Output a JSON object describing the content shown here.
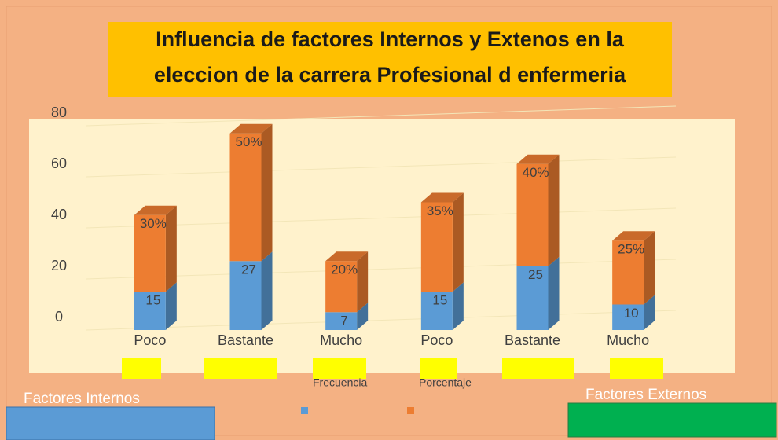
{
  "chart_data": {
    "type": "bar3d_stacked",
    "title": [
      "Influencia de factores Internos y Extenos en la",
      "eleccion de la carrera Profesional d enfermeria"
    ],
    "categories": [
      "Poco",
      "Bastante",
      "Mucho",
      "Poco",
      "Bastante",
      "Mucho"
    ],
    "group_labels": [
      "Factores Internos",
      "Factores Externos"
    ],
    "series": [
      {
        "name": "Frecuencia",
        "color": "#5b9bd5",
        "values": [
          15,
          27,
          7,
          15,
          25,
          10
        ]
      },
      {
        "name": "Porcentaje",
        "color": "#ed7d31",
        "values": [
          30,
          50,
          20,
          35,
          40,
          25
        ],
        "value_labels": [
          "30%",
          "50%",
          "20%",
          "35%",
          "40%",
          "25%"
        ]
      }
    ],
    "ylim": [
      0,
      80
    ],
    "yticks": [
      0,
      20,
      40,
      60,
      80
    ],
    "stacked": true
  }
}
